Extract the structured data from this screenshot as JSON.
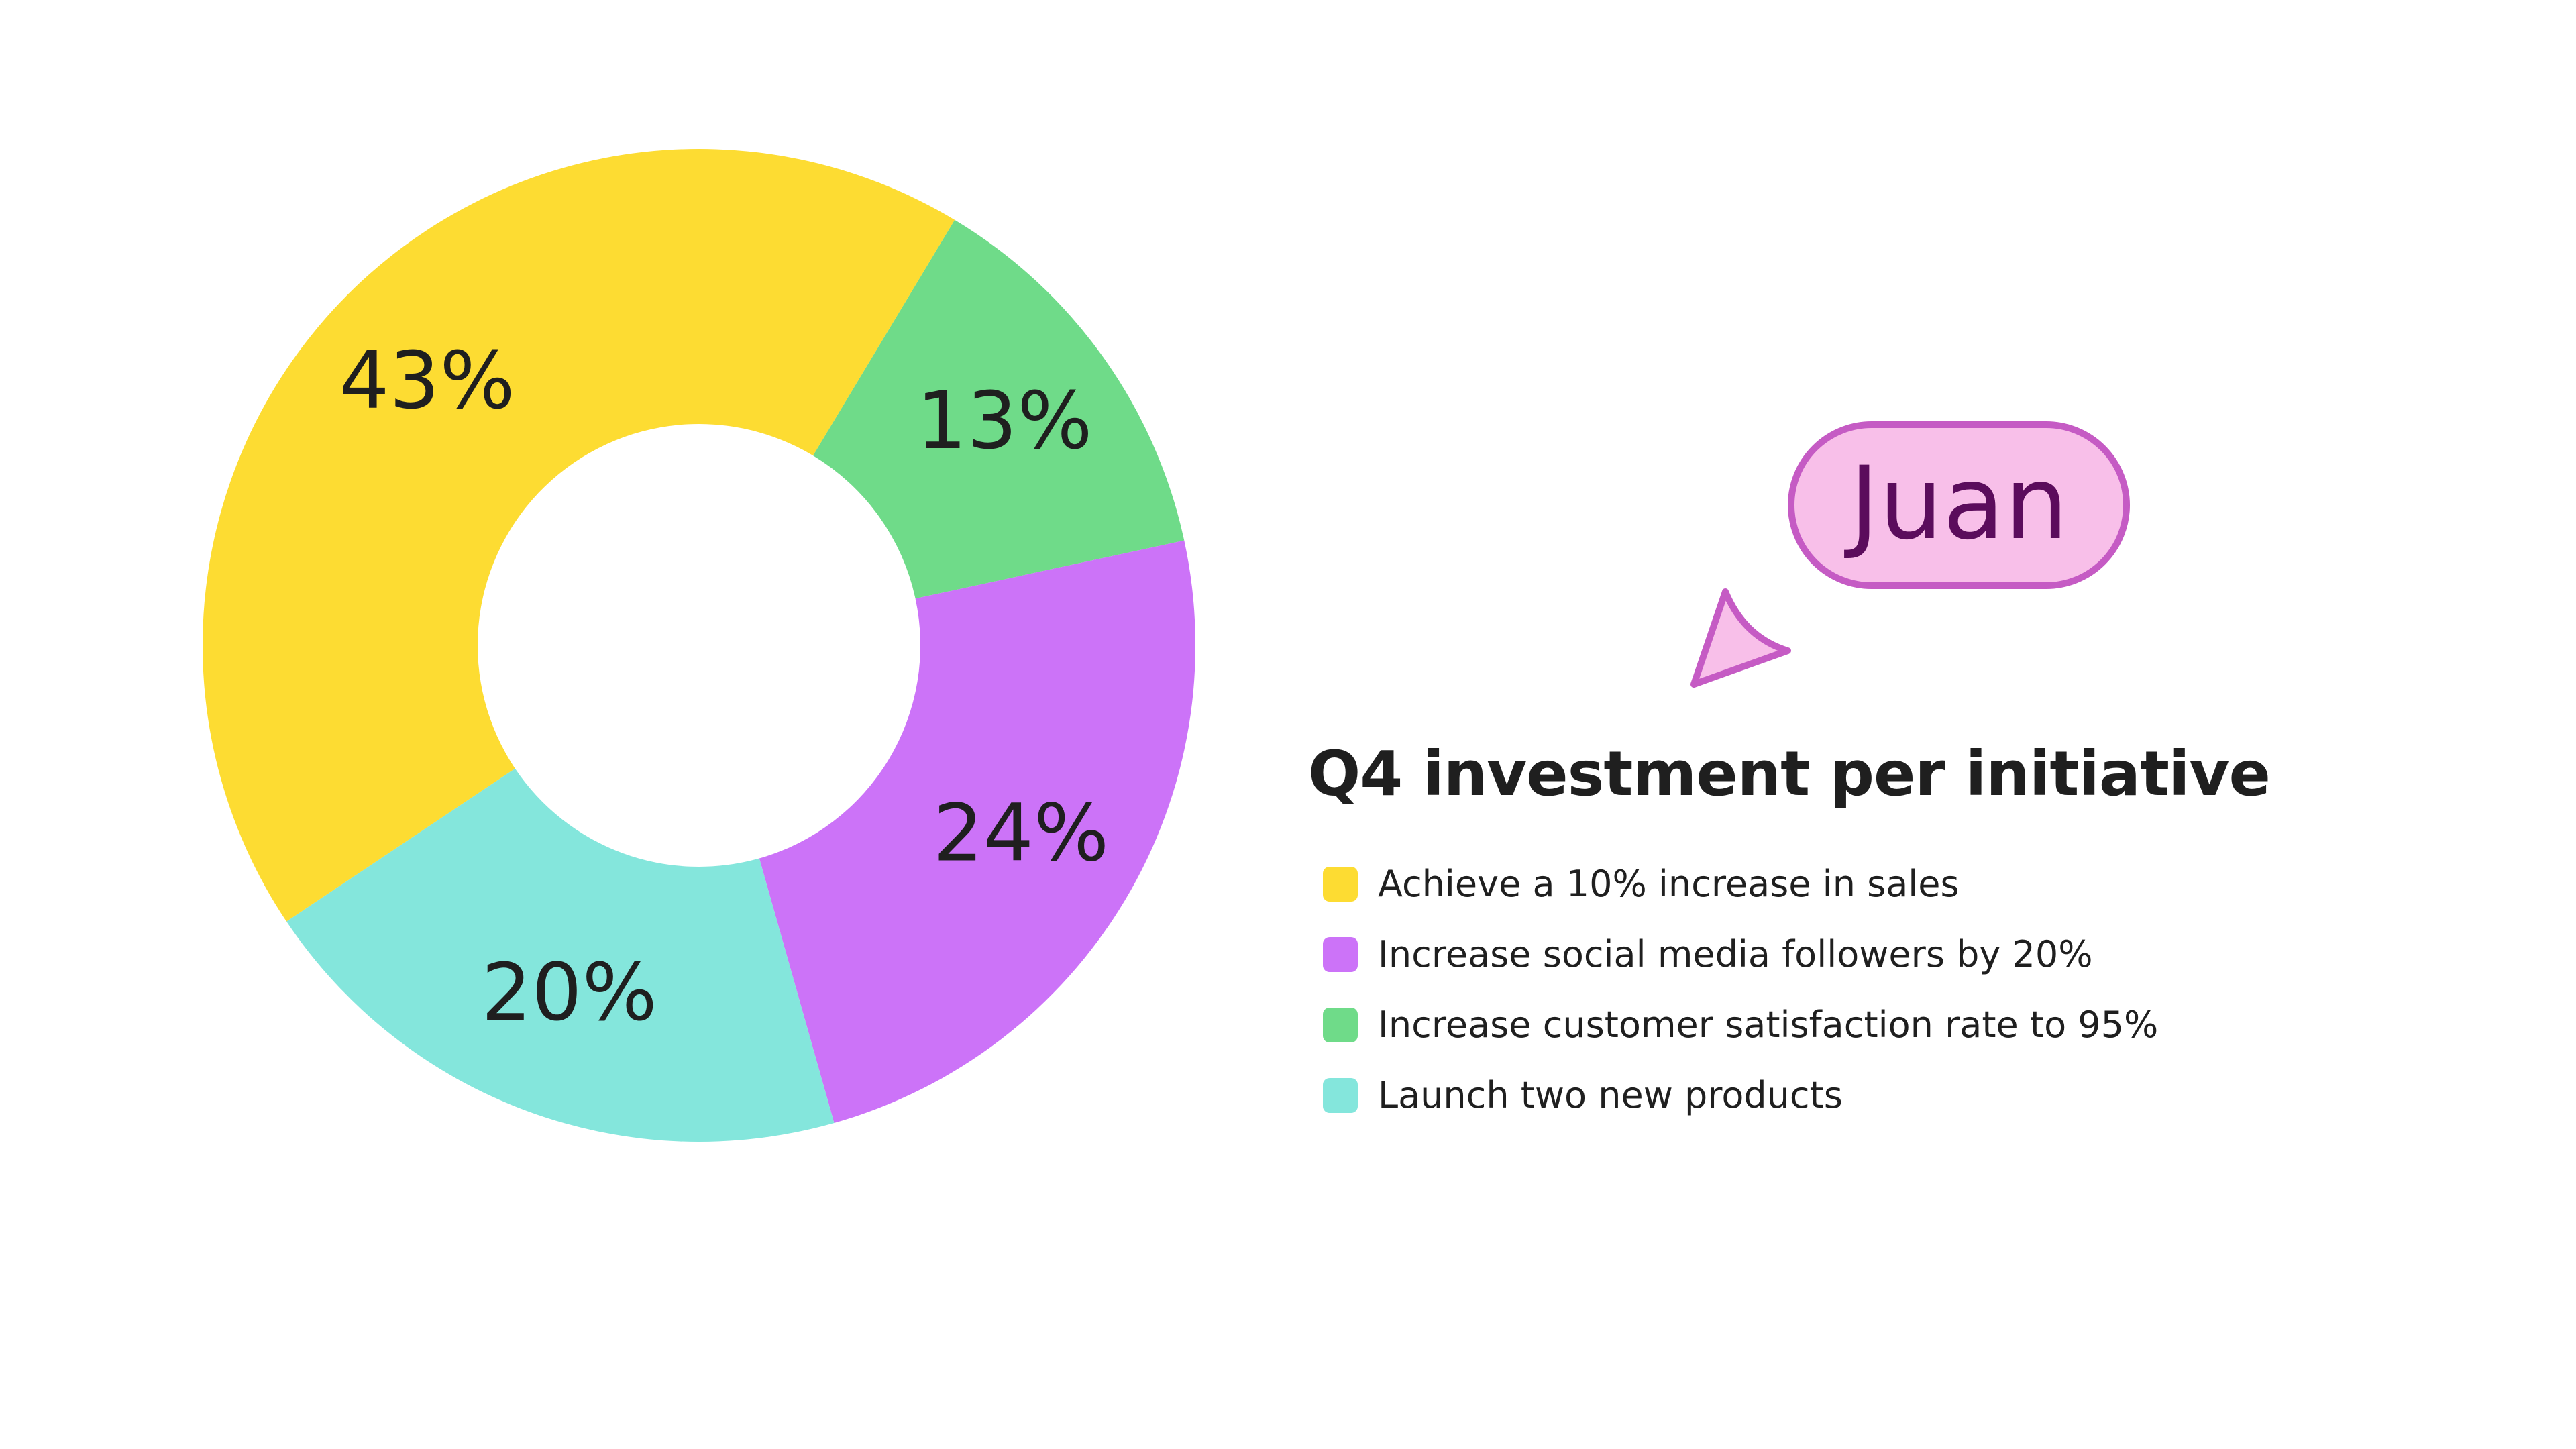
{
  "chart_data": {
    "type": "pie",
    "title": "Q4 investment per initiative",
    "donut": true,
    "legend_position": "right",
    "slices": [
      {
        "label": "Achieve a 10% increase in sales",
        "value": 43,
        "display": "43%",
        "color": "#FDDC32"
      },
      {
        "label": "Increase social media followers by 20%",
        "value": 24,
        "display": "24%",
        "color": "#CC73F8"
      },
      {
        "label": "Increase customer satisfaction rate to 95%",
        "value": 13,
        "display": "13%",
        "color": "#6FDB89"
      },
      {
        "label": "Launch two new products",
        "value": 20,
        "display": "20%",
        "color": "#84E6DC"
      }
    ]
  },
  "collaborator_cursor": {
    "name": "Juan",
    "color": "#F8BFE9",
    "border_color": "#C55BC4",
    "text_color": "#5B0C5C",
    "icon": "cursor-arrow-icon"
  }
}
